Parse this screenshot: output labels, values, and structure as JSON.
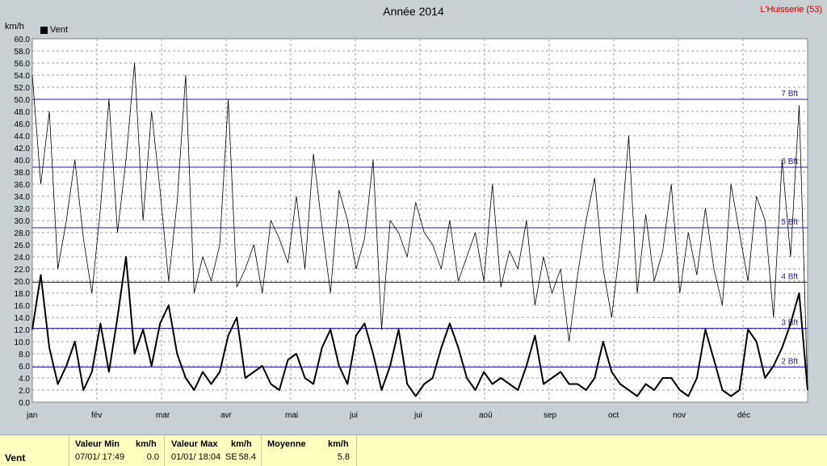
{
  "header": {
    "title": "Année 2014",
    "site": "L'Huisserie (53)",
    "unit": "km/h"
  },
  "legend": {
    "series_name": "Vent"
  },
  "chart_data": {
    "type": "line",
    "title": "Année 2014",
    "ylabel": "km/h",
    "ylim": [
      0,
      60
    ],
    "y_ticks": [
      "0.0",
      "2.0",
      "4.0",
      "6.0",
      "8.0",
      "10.0",
      "12.0",
      "14.0",
      "16.0",
      "18.0",
      "20.0",
      "22.0",
      "24.0",
      "26.0",
      "28.0",
      "30.0",
      "32.0",
      "34.0",
      "36.0",
      "38.0",
      "40.0",
      "42.0",
      "44.0",
      "46.0",
      "48.0",
      "50.0",
      "52.0",
      "54.0",
      "56.0",
      "58.0",
      "60.0"
    ],
    "x_months": [
      "jan",
      "fév",
      "mar",
      "avr",
      "mai",
      "jui",
      "jui",
      "aoû",
      "sep",
      "oct",
      "nov",
      "déc"
    ],
    "beaufort": [
      {
        "label": "2 Bft",
        "value": 5.8
      },
      {
        "label": "3 Bft",
        "value": 12.2
      },
      {
        "label": "4 Bft",
        "value": 19.8
      },
      {
        "label": "5 Bft",
        "value": 28.8
      },
      {
        "label": "6 Bft",
        "value": 38.8
      },
      {
        "label": "7 Bft",
        "value": 50.0
      }
    ],
    "grid": true,
    "series": [
      {
        "name": "Vent",
        "role": "average",
        "x": [
          1,
          5,
          9,
          13,
          17,
          21,
          25,
          29,
          33,
          37,
          41,
          45,
          49,
          53,
          57,
          61,
          65,
          69,
          73,
          77,
          81,
          85,
          89,
          93,
          97,
          101,
          105,
          109,
          113,
          117,
          121,
          125,
          129,
          133,
          137,
          141,
          145,
          149,
          153,
          157,
          161,
          165,
          169,
          173,
          177,
          181,
          185,
          189,
          193,
          197,
          201,
          205,
          209,
          213,
          217,
          221,
          225,
          229,
          233,
          237,
          241,
          245,
          249,
          253,
          257,
          261,
          265,
          269,
          273,
          277,
          281,
          285,
          289,
          293,
          297,
          301,
          305,
          309,
          313,
          317,
          321,
          325,
          329,
          333,
          337,
          341,
          345,
          349,
          353,
          357,
          361,
          365
        ],
        "values": [
          12,
          21,
          9,
          3,
          6,
          10,
          2,
          5,
          13,
          5,
          14,
          24,
          8,
          12,
          6,
          13,
          16,
          8,
          4,
          2,
          5,
          3,
          5,
          11,
          14,
          4,
          5,
          6,
          3,
          2,
          7,
          8,
          4,
          3,
          9,
          12,
          6,
          3,
          11,
          13,
          8,
          2,
          6,
          12,
          3,
          1,
          3,
          4,
          9,
          13,
          9,
          4,
          2,
          5,
          3,
          4,
          3,
          2,
          6,
          11,
          3,
          4,
          5,
          3,
          3,
          2,
          4,
          10,
          5,
          3,
          2,
          1,
          3,
          2,
          4,
          4,
          2,
          1,
          4,
          12,
          7,
          2,
          1,
          2,
          12,
          10,
          4,
          6,
          9,
          13,
          18,
          2
        ]
      },
      {
        "name": "Vent",
        "role": "gust",
        "x": [
          1,
          5,
          9,
          13,
          17,
          21,
          25,
          29,
          33,
          37,
          41,
          45,
          49,
          53,
          57,
          61,
          65,
          69,
          73,
          77,
          81,
          85,
          89,
          93,
          97,
          101,
          105,
          109,
          113,
          117,
          121,
          125,
          129,
          133,
          137,
          141,
          145,
          149,
          153,
          157,
          161,
          165,
          169,
          173,
          177,
          181,
          185,
          189,
          193,
          197,
          201,
          205,
          209,
          213,
          217,
          221,
          225,
          229,
          233,
          237,
          241,
          245,
          249,
          253,
          257,
          261,
          265,
          269,
          273,
          277,
          281,
          285,
          289,
          293,
          297,
          301,
          305,
          309,
          313,
          317,
          321,
          325,
          329,
          333,
          337,
          341,
          345,
          349,
          353,
          357,
          361,
          365
        ],
        "values": [
          54,
          36,
          48,
          22,
          30,
          40,
          27,
          18,
          32,
          50,
          28,
          40,
          56,
          30,
          48,
          35,
          20,
          33,
          54,
          18,
          24,
          20,
          26,
          50,
          19,
          22,
          26,
          18,
          30,
          27,
          23,
          34,
          22,
          41,
          29,
          18,
          35,
          30,
          22,
          27,
          40,
          12,
          30,
          28,
          24,
          33,
          28,
          26,
          22,
          30,
          20,
          24,
          28,
          20,
          36,
          19,
          25,
          22,
          30,
          16,
          24,
          18,
          22,
          10,
          21,
          30,
          37,
          22,
          14,
          26,
          44,
          18,
          31,
          20,
          25,
          36,
          18,
          28,
          21,
          32,
          22,
          16,
          36,
          28,
          20,
          34,
          30,
          14,
          40,
          24,
          49,
          2
        ]
      }
    ]
  },
  "stats": {
    "row_label": "Vent",
    "min": {
      "title": "Valeur Min",
      "unit": "km/h",
      "date": "07/01/ 17:49",
      "value": "0.0"
    },
    "max": {
      "title": "Valeur Max",
      "unit": "km/h",
      "date": "01/01/ 18:04",
      "dir": "SE",
      "value": "58.4"
    },
    "avg": {
      "title": "Moyenne",
      "unit": "km/h",
      "value": "5.8"
    }
  }
}
